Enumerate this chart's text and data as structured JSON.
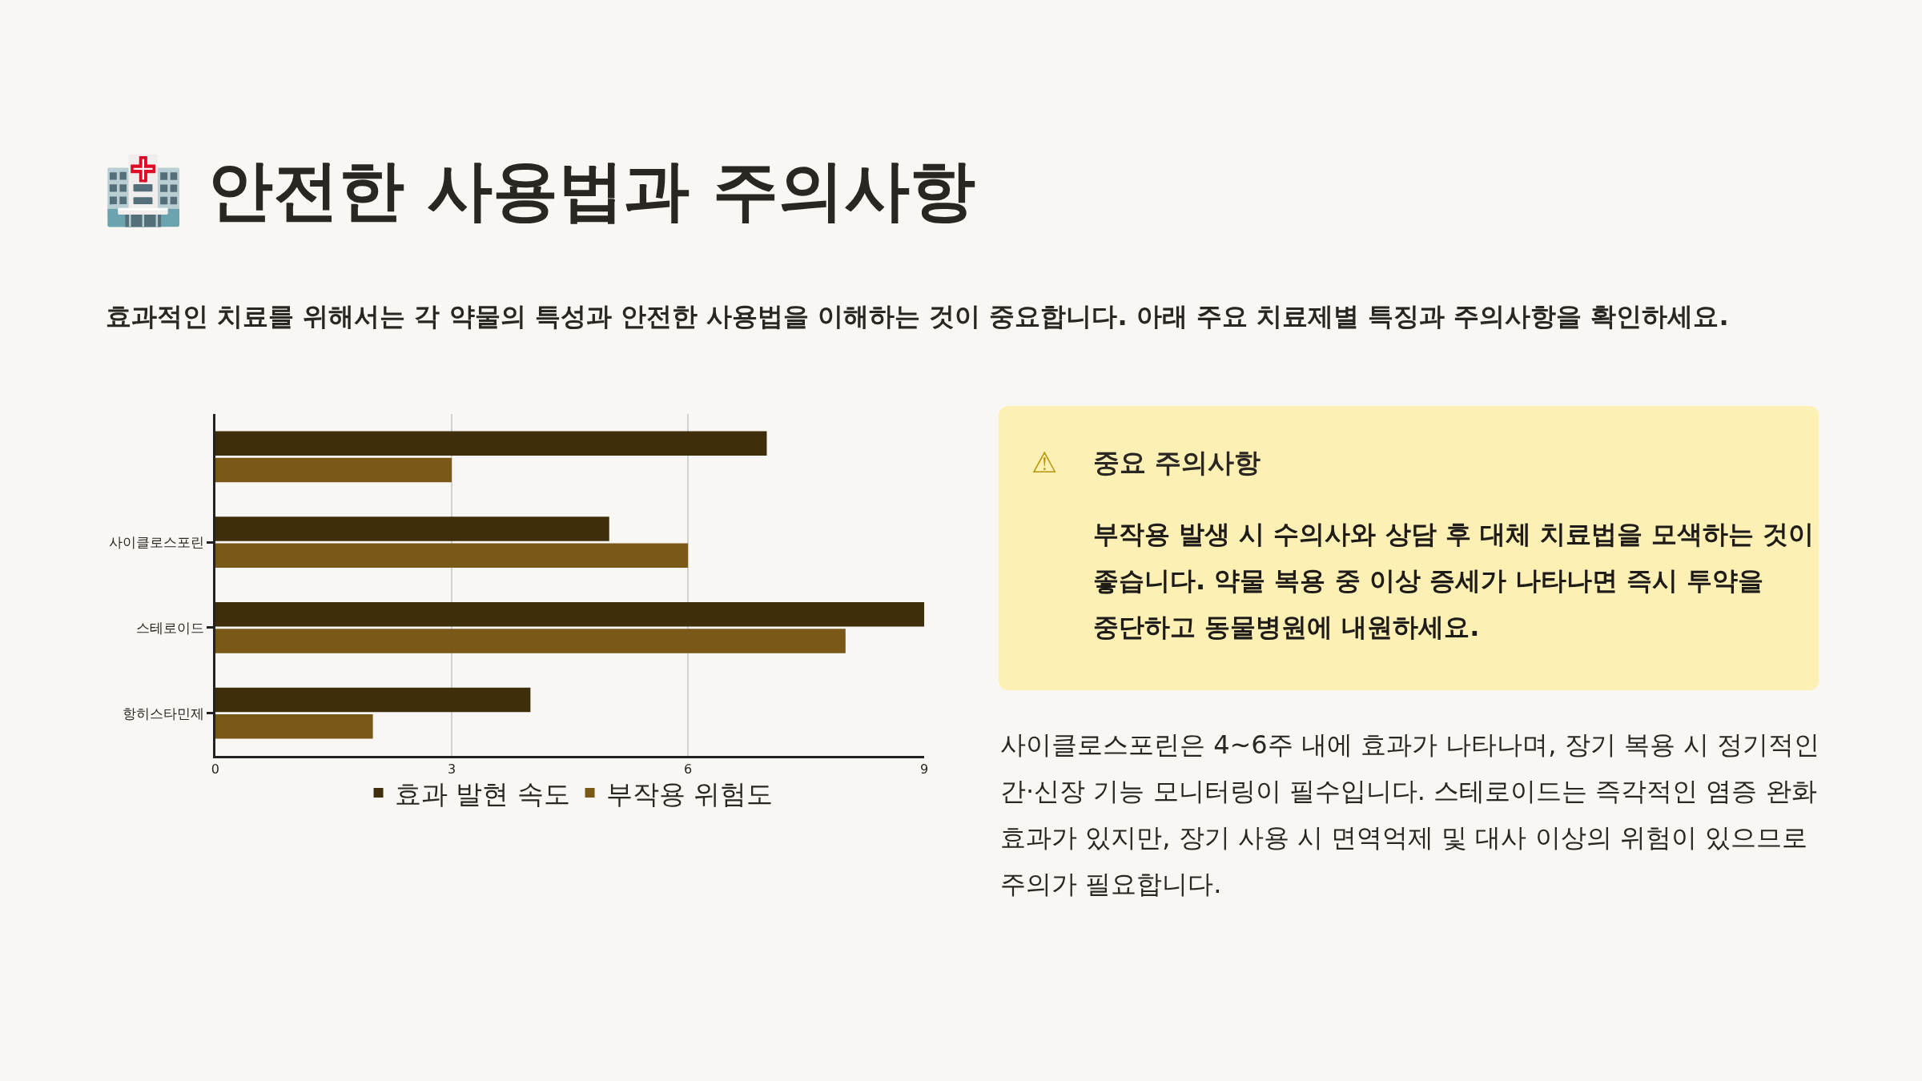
{
  "chart_data": [
    {
      "type": "bar",
      "title": "🏥 안전한 사용법과 주의사항",
      "subtitle": "효과적인 치료를 위해서는 각 약물의 특성과 안전한 사용법을 이해하는 것이 중요합니다. 아래 주요 치료제별 특징과 주의사항을 확인하세요.",
      "orientation": "horizontal",
      "categories": [
        null,
        "사이클로스포린",
        "스테로이드",
        "항히스타민제"
      ],
      "series": [
        {
          "name": "효과 발현 속도",
          "color": "#3f2e0c",
          "values": [
            7,
            5,
            9,
            4
          ]
        },
        {
          "name": "부작용 위험도",
          "color": "#7a5818",
          "values": [
            3,
            6,
            8,
            2
          ]
        }
      ],
      "xlim": [
        0,
        9
      ],
      "xticks": [
        0,
        3,
        6,
        9
      ],
      "grid": "x",
      "legend": "bottom"
    },
    {
      "type": "other",
      "title": "중요 주의사항",
      "annotations": [
        "⚠",
        "부작용 발생 시 수의사와 상담 후 대체 치료법을 모색하는 것이 좋습니다. 약물 복용 중 이상 증세가 나타나면 즉시 투약을 중단하고 동물병원에 내원하세요."
      ]
    },
    {
      "type": "other",
      "annotations": [
        "사이클로스포린은 4~6주 내에 효과가 나타나며, 장기 복용 시 정기적인 간·신장 기능 모니터링이 필수입니다. 스테로이드는 즉각적인 염증 완화 효과가 있지만, 장기 사용 시 면역억제 및 대사 이상의 위험이 있으므로 주의가 필요합니다."
      ]
    }
  ]
}
